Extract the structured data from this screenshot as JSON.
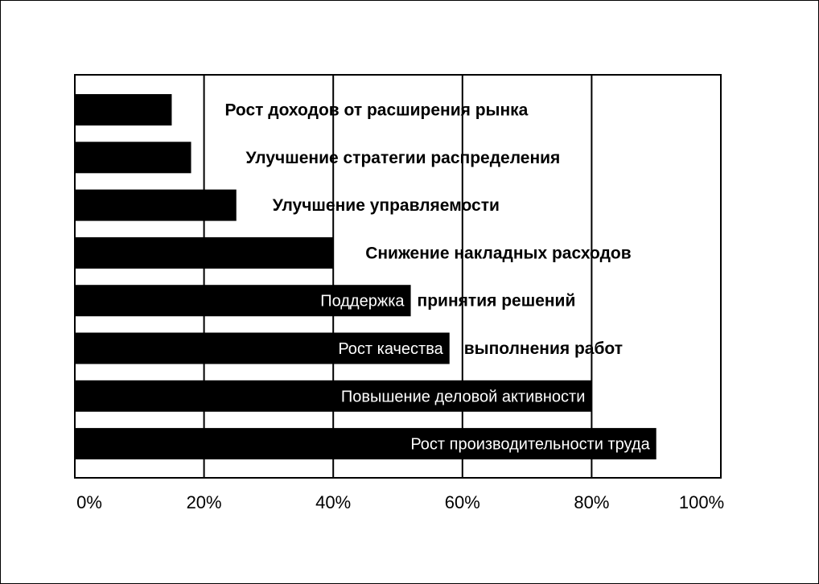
{
  "chart_data": {
    "type": "bar",
    "orientation": "horizontal",
    "categories": [
      "Рост доходов от расширения рынка",
      "Улучшение стратегии распределения",
      "Улучшение управляемости",
      "Снижение накладных расходов",
      "Поддержка принятия решений",
      "Рост качества выполнения работ",
      "Повышение деловой активности",
      "Рост производительности труда"
    ],
    "bar_labels": [
      {
        "inside": "",
        "outside": "Рост доходов от расширения рынка"
      },
      {
        "inside": "",
        "outside": "Улучшение стратегии распределения"
      },
      {
        "inside": "",
        "outside": "Улучшение управляемости"
      },
      {
        "inside": "",
        "outside": "Снижение накладных расходов"
      },
      {
        "inside": "Поддержка",
        "outside": "принятия решений"
      },
      {
        "inside": "Рост качества",
        "outside": "выполнения работ"
      },
      {
        "inside": "Повышение деловой активности",
        "outside": ""
      },
      {
        "inside": "Рост производительности труда",
        "outside": ""
      }
    ],
    "values": [
      15,
      18,
      25,
      40,
      52,
      58,
      80,
      90
    ],
    "xlim": [
      0,
      100
    ],
    "x_ticks": [
      "0%",
      "20%",
      "40%",
      "60%",
      "80%",
      "100%"
    ],
    "x_tick_values": [
      0,
      20,
      40,
      60,
      80,
      100
    ],
    "grid": true,
    "bar_color": "#000000",
    "title": "",
    "xlabel": "",
    "ylabel": ""
  }
}
